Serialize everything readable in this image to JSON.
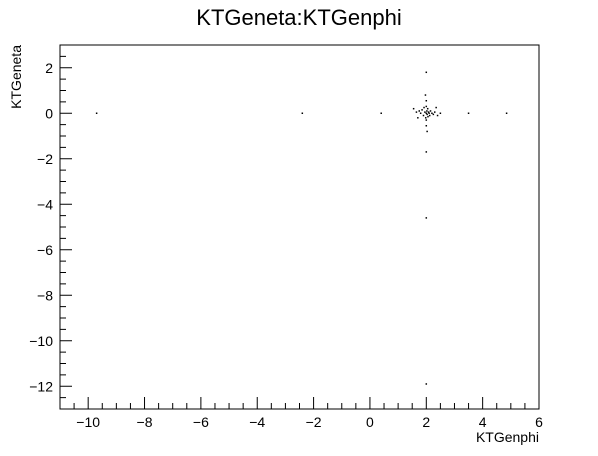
{
  "chart_data": {
    "type": "scatter",
    "title": "KTGeneta:KTGenphi",
    "xlabel": "KTGenphi",
    "ylabel": "KTGeneta",
    "xlim": [
      -11,
      6
    ],
    "ylim": [
      -13,
      3
    ],
    "xticks": [
      -10,
      -8,
      -6,
      -4,
      -2,
      0,
      2,
      4,
      6
    ],
    "xtick_labels": [
      "−10",
      "−8",
      "−6",
      "−4",
      "−2",
      "0",
      "2",
      "4",
      "6"
    ],
    "yticks": [
      2,
      0,
      -2,
      -4,
      -6,
      -8,
      -10,
      -12
    ],
    "ytick_labels": [
      "2",
      "0",
      "−2",
      "−4",
      "−6",
      "−8",
      "−10",
      "−12"
    ],
    "grid": false,
    "legend": "none",
    "points": [
      {
        "x": -9.7,
        "y": 0.0
      },
      {
        "x": -2.4,
        "y": 0.0
      },
      {
        "x": 0.4,
        "y": 0.0
      },
      {
        "x": 3.5,
        "y": 0.0
      },
      {
        "x": 4.85,
        "y": 0.0
      },
      {
        "x": 2.0,
        "y": 1.8
      },
      {
        "x": 2.0,
        "y": -1.7
      },
      {
        "x": 2.0,
        "y": -4.6
      },
      {
        "x": 2.0,
        "y": -11.9
      },
      {
        "x": 1.55,
        "y": 0.2
      },
      {
        "x": 1.65,
        "y": 0.05
      },
      {
        "x": 1.75,
        "y": 0.1
      },
      {
        "x": 1.8,
        "y": 0.0
      },
      {
        "x": 1.85,
        "y": 0.15
      },
      {
        "x": 1.9,
        "y": -0.1
      },
      {
        "x": 1.92,
        "y": 0.25
      },
      {
        "x": 1.95,
        "y": 0.05
      },
      {
        "x": 1.98,
        "y": -0.2
      },
      {
        "x": 2.0,
        "y": 0.0
      },
      {
        "x": 2.0,
        "y": 0.3
      },
      {
        "x": 2.0,
        "y": -0.3
      },
      {
        "x": 2.0,
        "y": 0.55
      },
      {
        "x": 2.0,
        "y": -0.55
      },
      {
        "x": 2.02,
        "y": 0.1
      },
      {
        "x": 2.03,
        "y": -0.05
      },
      {
        "x": 2.05,
        "y": 0.2
      },
      {
        "x": 2.06,
        "y": -0.15
      },
      {
        "x": 2.08,
        "y": 0.05
      },
      {
        "x": 2.1,
        "y": 0.0
      },
      {
        "x": 2.12,
        "y": -0.1
      },
      {
        "x": 2.15,
        "y": 0.1
      },
      {
        "x": 2.2,
        "y": 0.0
      },
      {
        "x": 2.25,
        "y": -0.05
      },
      {
        "x": 2.3,
        "y": 0.05
      },
      {
        "x": 2.4,
        "y": -0.1
      },
      {
        "x": 2.5,
        "y": 0.0
      },
      {
        "x": 1.97,
        "y": 0.8
      },
      {
        "x": 2.03,
        "y": -0.8
      },
      {
        "x": 1.7,
        "y": -0.2
      },
      {
        "x": 2.35,
        "y": 0.25
      }
    ]
  }
}
